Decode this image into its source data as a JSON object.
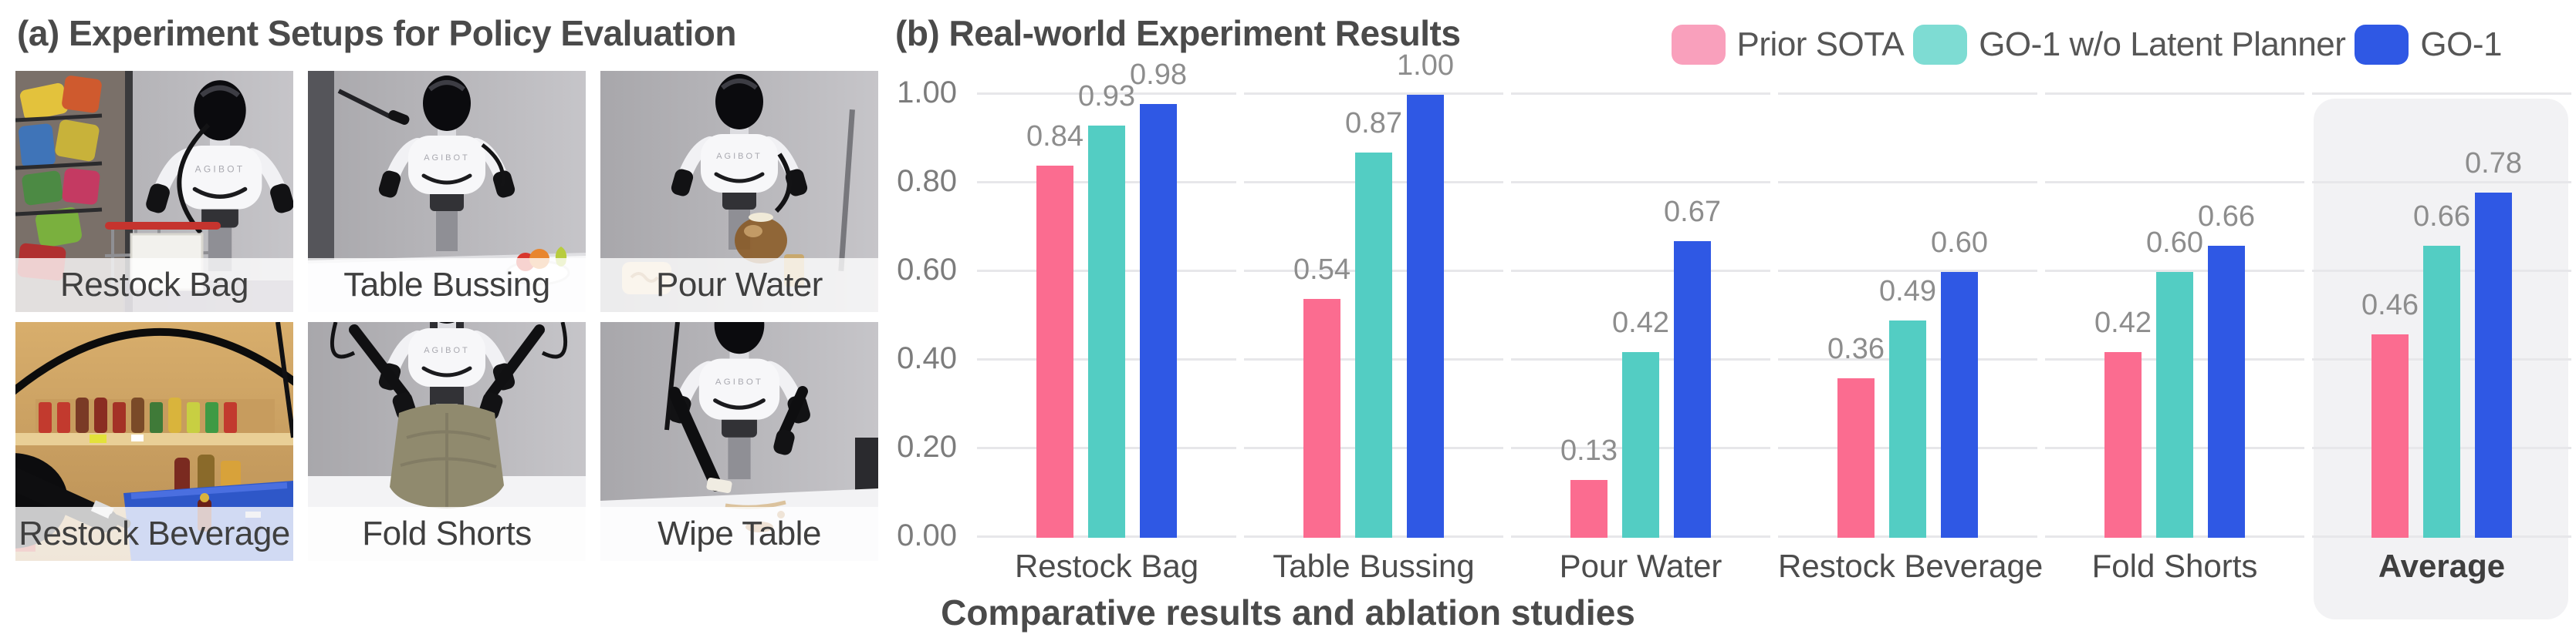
{
  "panel_a": {
    "title": "(a) Experiment Setups for Policy Evaluation",
    "photos": [
      {
        "label": "Restock Bag"
      },
      {
        "label": "Table Bussing"
      },
      {
        "label": "Pour Water"
      },
      {
        "label": "Restock Beverage"
      },
      {
        "label": "Fold Shorts"
      },
      {
        "label": "Wipe Table"
      }
    ]
  },
  "panel_b": {
    "title": "(b) Real-world Experiment Results",
    "caption": "Comparative results and ablation studies"
  },
  "legend": [
    {
      "label": "Prior SOTA",
      "swatch_color": "#F9A0BC"
    },
    {
      "label": "GO-1 w/o Latent Planner",
      "swatch_color": "#7EDCD3"
    },
    {
      "label": "GO-1",
      "swatch_color": "#2F58E4"
    }
  ],
  "chart_data": {
    "type": "bar",
    "title": "(b) Real-world Experiment Results",
    "categories": [
      "Restock Bag",
      "Table Bussing",
      "Pour Water",
      "Restock Beverage",
      "Fold Shorts",
      "Average"
    ],
    "series": [
      {
        "name": "Prior SOTA",
        "color": "#FB6C90",
        "values": [
          0.84,
          0.54,
          0.13,
          0.36,
          0.42,
          0.46
        ]
      },
      {
        "name": "GO-1 w/o Latent Planner",
        "color": "#53CDC3",
        "values": [
          0.93,
          0.87,
          0.42,
          0.49,
          0.6,
          0.66
        ]
      },
      {
        "name": "GO-1",
        "color": "#2F58E4",
        "values": [
          0.98,
          1.0,
          0.67,
          0.6,
          0.66,
          0.78
        ]
      }
    ],
    "xlabel": "",
    "ylabel": "",
    "ylim": [
      0,
      1.0
    ],
    "yticks": [
      "0.00",
      "0.20",
      "0.40",
      "0.60",
      "0.80",
      "1.00"
    ],
    "grid": "horizontal",
    "legend_position": "top-right",
    "highlighted_category": "Average",
    "value_label_format": "0.00"
  }
}
